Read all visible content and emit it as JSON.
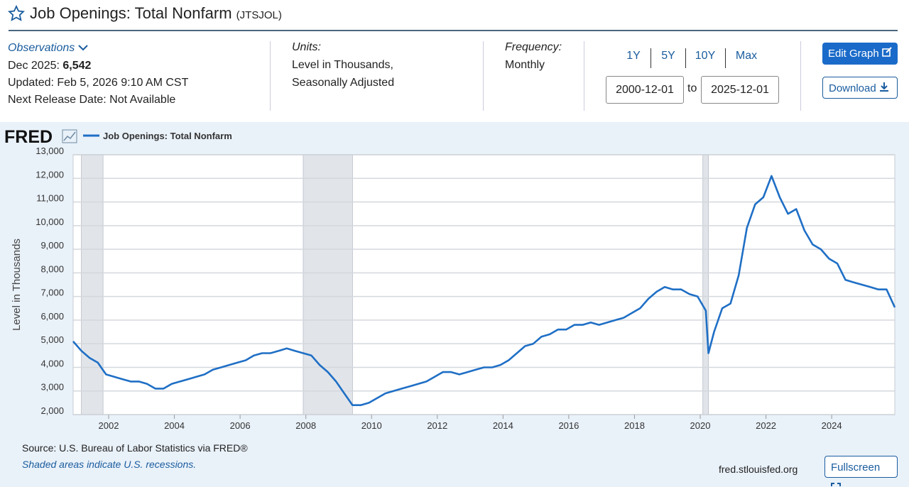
{
  "header": {
    "title": "Job Openings: Total Nonfarm",
    "series_id": "(JTSJOL)"
  },
  "observations": {
    "label": "Observations",
    "period": "Dec 2025:",
    "value": "6,542",
    "updated": "Updated: Feb 5, 2026 9:10 AM CST",
    "next_release": "Next Release Date: Not Available"
  },
  "units": {
    "label": "Units:",
    "lines": [
      "Level in Thousands,",
      "Seasonally Adjusted"
    ]
  },
  "frequency": {
    "label": "Frequency:",
    "value": "Monthly"
  },
  "range_buttons": [
    "1Y",
    "5Y",
    "10Y",
    "Max"
  ],
  "date_range": {
    "start": "2000-12-01",
    "separator": "to",
    "end": "2025-12-01"
  },
  "buttons": {
    "edit": "Edit Graph",
    "download": "Download",
    "fullscreen": "Fullscreen"
  },
  "logo": "FRED",
  "footer": {
    "source": "Source: U.S. Bureau of Labor Statistics via FRED®",
    "note": "Shaded areas indicate U.S. recessions.",
    "site": "fred.stlouisfed.org"
  },
  "chart_data": {
    "type": "line",
    "y_label": "Level in Thousands",
    "x": [
      2000.92,
      2001.17,
      2001.42,
      2001.67,
      2001.92,
      2002.17,
      2002.42,
      2002.67,
      2002.92,
      2003.17,
      2003.42,
      2003.67,
      2003.92,
      2004.17,
      2004.42,
      2004.67,
      2004.92,
      2005.17,
      2005.42,
      2005.67,
      2005.92,
      2006.17,
      2006.42,
      2006.67,
      2006.92,
      2007.17,
      2007.42,
      2007.67,
      2007.92,
      2008.17,
      2008.42,
      2008.67,
      2008.92,
      2009.17,
      2009.42,
      2009.67,
      2009.92,
      2010.17,
      2010.42,
      2010.67,
      2010.92,
      2011.17,
      2011.42,
      2011.67,
      2011.92,
      2012.17,
      2012.42,
      2012.67,
      2012.92,
      2013.17,
      2013.42,
      2013.67,
      2013.92,
      2014.17,
      2014.42,
      2014.67,
      2014.92,
      2015.17,
      2015.42,
      2015.67,
      2015.92,
      2016.17,
      2016.42,
      2016.67,
      2016.92,
      2017.17,
      2017.42,
      2017.67,
      2017.92,
      2018.17,
      2018.42,
      2018.67,
      2018.92,
      2019.17,
      2019.42,
      2019.67,
      2019.92,
      2020.17,
      2020.25,
      2020.42,
      2020.67,
      2020.92,
      2021.17,
      2021.42,
      2021.67,
      2021.92,
      2022.17,
      2022.42,
      2022.67,
      2022.92,
      2023.17,
      2023.42,
      2023.67,
      2023.92,
      2024.17,
      2024.42,
      2024.67,
      2024.92,
      2025.17,
      2025.42,
      2025.67,
      2025.92
    ],
    "series": [
      {
        "name": "Job Openings: Total Nonfarm",
        "color": "#1f6fc5",
        "values": [
          5100,
          4700,
          4400,
          4200,
          3700,
          3600,
          3500,
          3400,
          3400,
          3300,
          3100,
          3100,
          3300,
          3400,
          3500,
          3600,
          3700,
          3900,
          4000,
          4100,
          4200,
          4300,
          4500,
          4600,
          4600,
          4700,
          4800,
          4700,
          4600,
          4500,
          4100,
          3800,
          3400,
          2900,
          2400,
          2400,
          2500,
          2700,
          2900,
          3000,
          3100,
          3200,
          3300,
          3400,
          3600,
          3800,
          3800,
          3700,
          3800,
          3900,
          4000,
          4000,
          4100,
          4300,
          4600,
          4900,
          5000,
          5300,
          5400,
          5600,
          5600,
          5800,
          5800,
          5900,
          5800,
          5900,
          6000,
          6100,
          6300,
          6500,
          6900,
          7200,
          7400,
          7300,
          7300,
          7100,
          7000,
          6400,
          4600,
          5500,
          6500,
          6700,
          7900,
          9900,
          10900,
          11200,
          12100,
          11200,
          10500,
          10700,
          9800,
          9200,
          9000,
          8600,
          8400,
          7700,
          7600,
          7500,
          7400,
          7300,
          7300,
          6542
        ]
      }
    ],
    "recessions": [
      [
        2001.17,
        2001.83
      ],
      [
        2007.92,
        2009.42
      ],
      [
        2020.08,
        2020.25
      ]
    ],
    "xlim": [
      2000.92,
      2025.92
    ],
    "xticks": [
      2002,
      2004,
      2006,
      2008,
      2010,
      2012,
      2014,
      2016,
      2018,
      2020,
      2022,
      2024
    ],
    "ylim": [
      2000,
      13000
    ],
    "yticks": [
      {
        "value": 2000,
        "label": "2,000"
      },
      {
        "value": 3000,
        "label": "3,000"
      },
      {
        "value": 4000,
        "label": "4,000"
      },
      {
        "value": 5000,
        "label": "5,000"
      },
      {
        "value": 6000,
        "label": "6,000"
      },
      {
        "value": 7000,
        "label": "7,000"
      },
      {
        "value": 8000,
        "label": "8,000"
      },
      {
        "value": 9000,
        "label": "9,000"
      },
      {
        "value": 10000,
        "label": "10,000"
      },
      {
        "value": 11000,
        "label": "11,000"
      },
      {
        "value": 12000,
        "label": "12,000"
      },
      {
        "value": 13000,
        "label": "13,000"
      }
    ],
    "grid": true
  }
}
